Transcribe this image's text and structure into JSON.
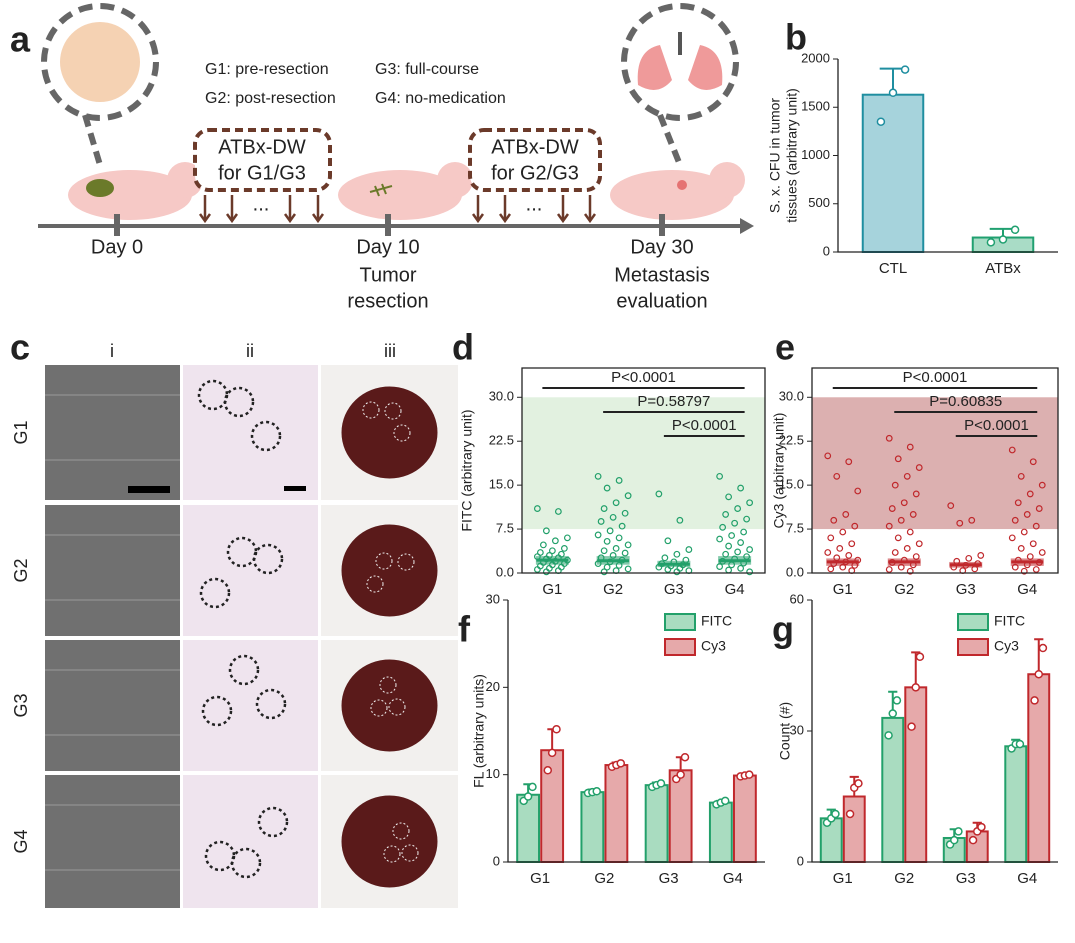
{
  "panel_a": {
    "label": "a",
    "groups": [
      "G1: pre-resection",
      "G2: post-resection",
      "G3: full-course",
      "G4: no-medication"
    ],
    "treatments": [
      [
        "ATBx-DW",
        "for G1/G3"
      ],
      [
        "ATBx-DW",
        "for G2/G3"
      ]
    ],
    "ellipsis": "...",
    "timepoints": [
      {
        "day": "Day 0"
      },
      {
        "day": "Day 10",
        "event": [
          "Tumor",
          "resection"
        ]
      },
      {
        "day": "Day 30",
        "event": [
          "Metastasis",
          "evaluation"
        ]
      }
    ]
  },
  "panel_c": {
    "label": "c",
    "columns": [
      "i",
      "ii",
      "iii"
    ],
    "rows": [
      "G1",
      "G2",
      "G3",
      "G4"
    ]
  },
  "chart_data": [
    {
      "type": "bar",
      "panel": "b",
      "ylabel": [
        "S. x. CFU in tumor",
        "tissues (arbitrary unit)"
      ],
      "categories": [
        "CTL",
        "ATBx"
      ],
      "values": [
        1630,
        150
      ],
      "errors": [
        270,
        90
      ],
      "points": [
        [
          1350,
          1650,
          1890
        ],
        [
          100,
          130,
          230
        ]
      ],
      "colors": [
        "#a6d3dc",
        "#a9dcc6"
      ],
      "edge_colors": [
        "#1f8ea0",
        "#20a070"
      ],
      "ylim": [
        0,
        2000
      ],
      "yticks": [
        0,
        500,
        1000,
        1500,
        2000
      ]
    },
    {
      "type": "strip",
      "panel": "d",
      "ylabel": "FITC (arbitrary unit)",
      "categories": [
        "G1",
        "G2",
        "G3",
        "G4"
      ],
      "color": "#22a06a",
      "shade": {
        "from": 7.5,
        "to": 30,
        "color": "#e2f1e0"
      },
      "points": [
        [
          11.0,
          10.5,
          7.2,
          6.0,
          5.5,
          4.8,
          4.2,
          3.8,
          3.5,
          3.2,
          3.0,
          2.8,
          2.6,
          2.4,
          2.2,
          2.0,
          1.8,
          1.6,
          1.4,
          1.2,
          1.0,
          0.8,
          0.6,
          0.4,
          0.2
        ],
        [
          16.5,
          15.8,
          14.5,
          13.2,
          12.0,
          11.0,
          10.2,
          9.5,
          8.8,
          8.0,
          7.2,
          6.5,
          6.0,
          5.4,
          4.8,
          4.2,
          3.8,
          3.4,
          3.0,
          2.6,
          2.2,
          1.9,
          1.6,
          1.3,
          1.0,
          0.7,
          0.4,
          0.2
        ],
        [
          13.5,
          9.0,
          5.5,
          4.0,
          3.2,
          2.6,
          2.2,
          1.9,
          1.6,
          1.4,
          1.2,
          1.0,
          0.8,
          0.6,
          0.4,
          0.2
        ],
        [
          16.5,
          14.5,
          13.0,
          12.0,
          11.0,
          10.0,
          9.2,
          8.5,
          7.8,
          7.0,
          6.4,
          5.8,
          5.2,
          4.6,
          4.0,
          3.6,
          3.2,
          2.8,
          2.4,
          2.0,
          1.7,
          1.4,
          1.1,
          0.8,
          0.5,
          0.2
        ]
      ],
      "q1": [
        1.5,
        1.5,
        1.1,
        1.5
      ],
      "medians": [
        2.2,
        2.1,
        1.5,
        2.1
      ],
      "q3": [
        2.8,
        2.8,
        2.0,
        2.8
      ],
      "brackets": [
        {
          "between": [
            "G1",
            "G4"
          ],
          "label": "P<0.0001"
        },
        {
          "between": [
            "G2",
            "G4"
          ],
          "label": "P=0.58797"
        },
        {
          "between": [
            "G3",
            "G4"
          ],
          "label": "P<0.0001"
        }
      ],
      "ylim": [
        0,
        35
      ],
      "yticks": [
        {
          "value": 0,
          "label": "0.0"
        },
        7.5,
        {
          "value": 15,
          "label": "15.0"
        },
        22.5,
        {
          "value": 30,
          "label": "30.0"
        }
      ]
    },
    {
      "type": "strip",
      "panel": "e",
      "ylabel": "Cy3 (arbitrary unit)",
      "categories": [
        "G1",
        "G2",
        "G3",
        "G4"
      ],
      "color": "#c0282c",
      "shade": {
        "from": 7.5,
        "to": 30,
        "color": "#dcb0b0"
      },
      "points": [
        [
          20.0,
          19.0,
          16.5,
          14.0,
          10.0,
          9.0,
          8.0,
          7.0,
          6.0,
          5.0,
          4.2,
          3.5,
          3.0,
          2.6,
          2.2,
          1.9,
          1.6,
          1.3,
          1.0,
          0.7,
          0.4
        ],
        [
          23.0,
          21.5,
          19.5,
          18.0,
          16.5,
          15.0,
          13.5,
          12.0,
          11.0,
          10.0,
          9.0,
          8.0,
          7.0,
          6.0,
          5.0,
          4.2,
          3.5,
          2.8,
          2.2,
          1.8,
          1.4,
          1.0,
          0.6,
          0.3
        ],
        [
          11.5,
          9.0,
          8.5,
          3.0,
          2.5,
          2.0,
          1.6,
          1.3,
          1.0,
          0.7,
          0.4
        ],
        [
          21.0,
          19.0,
          16.5,
          15.0,
          13.5,
          12.0,
          11.0,
          10.0,
          9.0,
          8.0,
          7.0,
          6.0,
          5.0,
          4.2,
          3.5,
          2.8,
          2.2,
          1.8,
          1.4,
          1.0,
          0.6,
          0.3
        ]
      ],
      "q1": [
        1.3,
        1.3,
        1.0,
        1.3
      ],
      "medians": [
        1.9,
        1.9,
        1.4,
        1.9
      ],
      "q3": [
        2.4,
        2.4,
        1.8,
        2.4
      ],
      "brackets": [
        {
          "between": [
            "G1",
            "G4"
          ],
          "label": "P<0.0001"
        },
        {
          "between": [
            "G2",
            "G4"
          ],
          "label": "P=0.60835"
        },
        {
          "between": [
            "G3",
            "G4"
          ],
          "label": "P<0.0001"
        }
      ],
      "ylim": [
        0,
        35
      ],
      "yticks": [
        {
          "value": 0,
          "label": "0.0"
        },
        7.5,
        {
          "value": 15,
          "label": "15.0"
        },
        22.5,
        {
          "value": 30,
          "label": "30.0"
        }
      ]
    },
    {
      "type": "bar",
      "panel": "f",
      "ylabel": "FL (arbitrary units)",
      "categories": [
        "G1",
        "G2",
        "G3",
        "G4"
      ],
      "legend": "top-right",
      "series": [
        {
          "name": "FITC",
          "color": "#a9dcc0",
          "edge": "#22a06a",
          "values": [
            7.7,
            8.0,
            8.8,
            6.8
          ],
          "errors": [
            1.2,
            0.3,
            0.3,
            0.2
          ],
          "points": [
            [
              7.0,
              7.5,
              8.6
            ],
            [
              7.9,
              8.0,
              8.1
            ],
            [
              8.6,
              8.8,
              9.0
            ],
            [
              6.6,
              6.8,
              7.0
            ]
          ]
        },
        {
          "name": "Cy3",
          "color": "#e6a9aa",
          "edge": "#c0282c",
          "values": [
            12.8,
            11.1,
            10.5,
            9.9
          ],
          "errors": [
            2.4,
            0.3,
            1.5,
            0.1
          ],
          "points": [
            [
              10.5,
              12.5,
              15.2
            ],
            [
              10.9,
              11.1,
              11.3
            ],
            [
              9.5,
              10.0,
              12.0
            ],
            [
              9.8,
              9.9,
              10.0
            ]
          ]
        }
      ],
      "ylim": [
        0,
        30
      ],
      "yticks": [
        0,
        10,
        20,
        30
      ]
    },
    {
      "type": "bar",
      "panel": "g",
      "ylabel": "Count (#)",
      "categories": [
        "G1",
        "G2",
        "G3",
        "G4"
      ],
      "legend": "top-right",
      "series": [
        {
          "name": "FITC",
          "color": "#a9dcc0",
          "edge": "#22a06a",
          "values": [
            10,
            33,
            5.5,
            26.5
          ],
          "errors": [
            2,
            6,
            2,
            1.5
          ],
          "points": [
            [
              9,
              10,
              11
            ],
            [
              29,
              34,
              37
            ],
            [
              4,
              5,
              7
            ],
            [
              26,
              27,
              27
            ]
          ]
        },
        {
          "name": "Cy3",
          "color": "#e6a9aa",
          "edge": "#c0282c",
          "values": [
            15,
            40,
            7,
            43
          ],
          "errors": [
            4.5,
            8,
            2,
            8
          ],
          "points": [
            [
              11,
              17,
              18
            ],
            [
              31,
              40,
              47
            ],
            [
              5,
              7,
              8
            ],
            [
              37,
              43,
              49
            ]
          ]
        }
      ],
      "ylim": [
        0,
        60
      ],
      "yticks": [
        0,
        30,
        60
      ]
    }
  ]
}
